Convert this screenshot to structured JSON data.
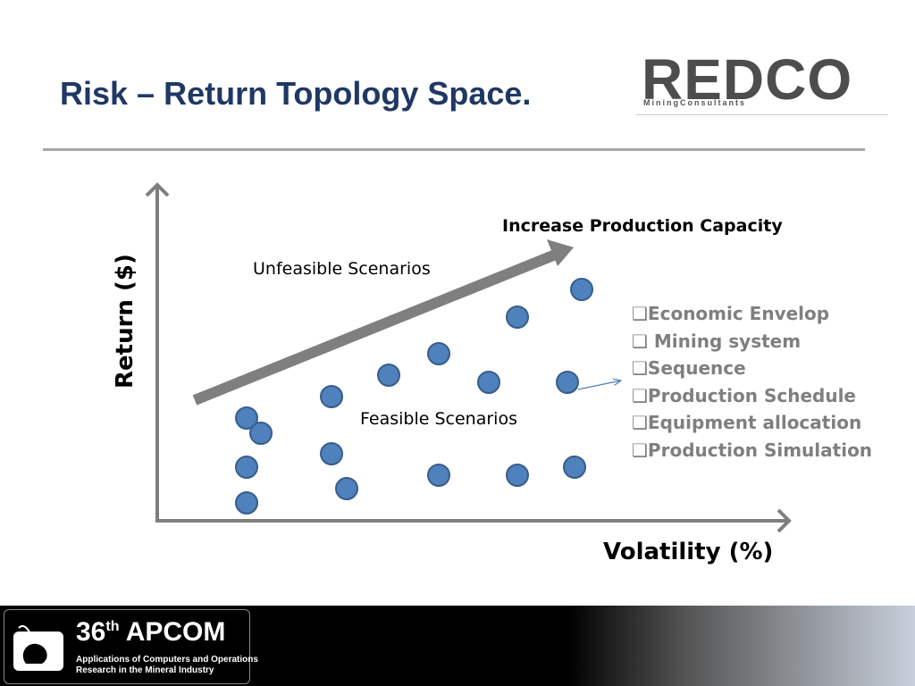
{
  "header": {
    "title": "Risk – Return Topology Space.",
    "logo": "REDCO",
    "logo_subtitle": "MiningConsultants"
  },
  "diagram": {
    "y_axis_label": "Return ($)",
    "x_axis_label": "Volatility (%)",
    "arrow_label": "Increase Production Capacity",
    "unfeasible_label": "Unfeasible Scenarios",
    "feasible_label": "Feasible Scenarios",
    "factors": [
      "❑Economic Envelop",
      "❑ Mining system",
      "❑Sequence",
      "❑Production Schedule",
      "❑Equipment allocation",
      "❑Production Simulation"
    ]
  },
  "footer": {
    "edition": "36",
    "edition_suffix": "th",
    "acronym": "APCOM",
    "subtitle": [
      "Applications of Computers and Operations",
      "Research in the Mineral Industry"
    ]
  }
}
